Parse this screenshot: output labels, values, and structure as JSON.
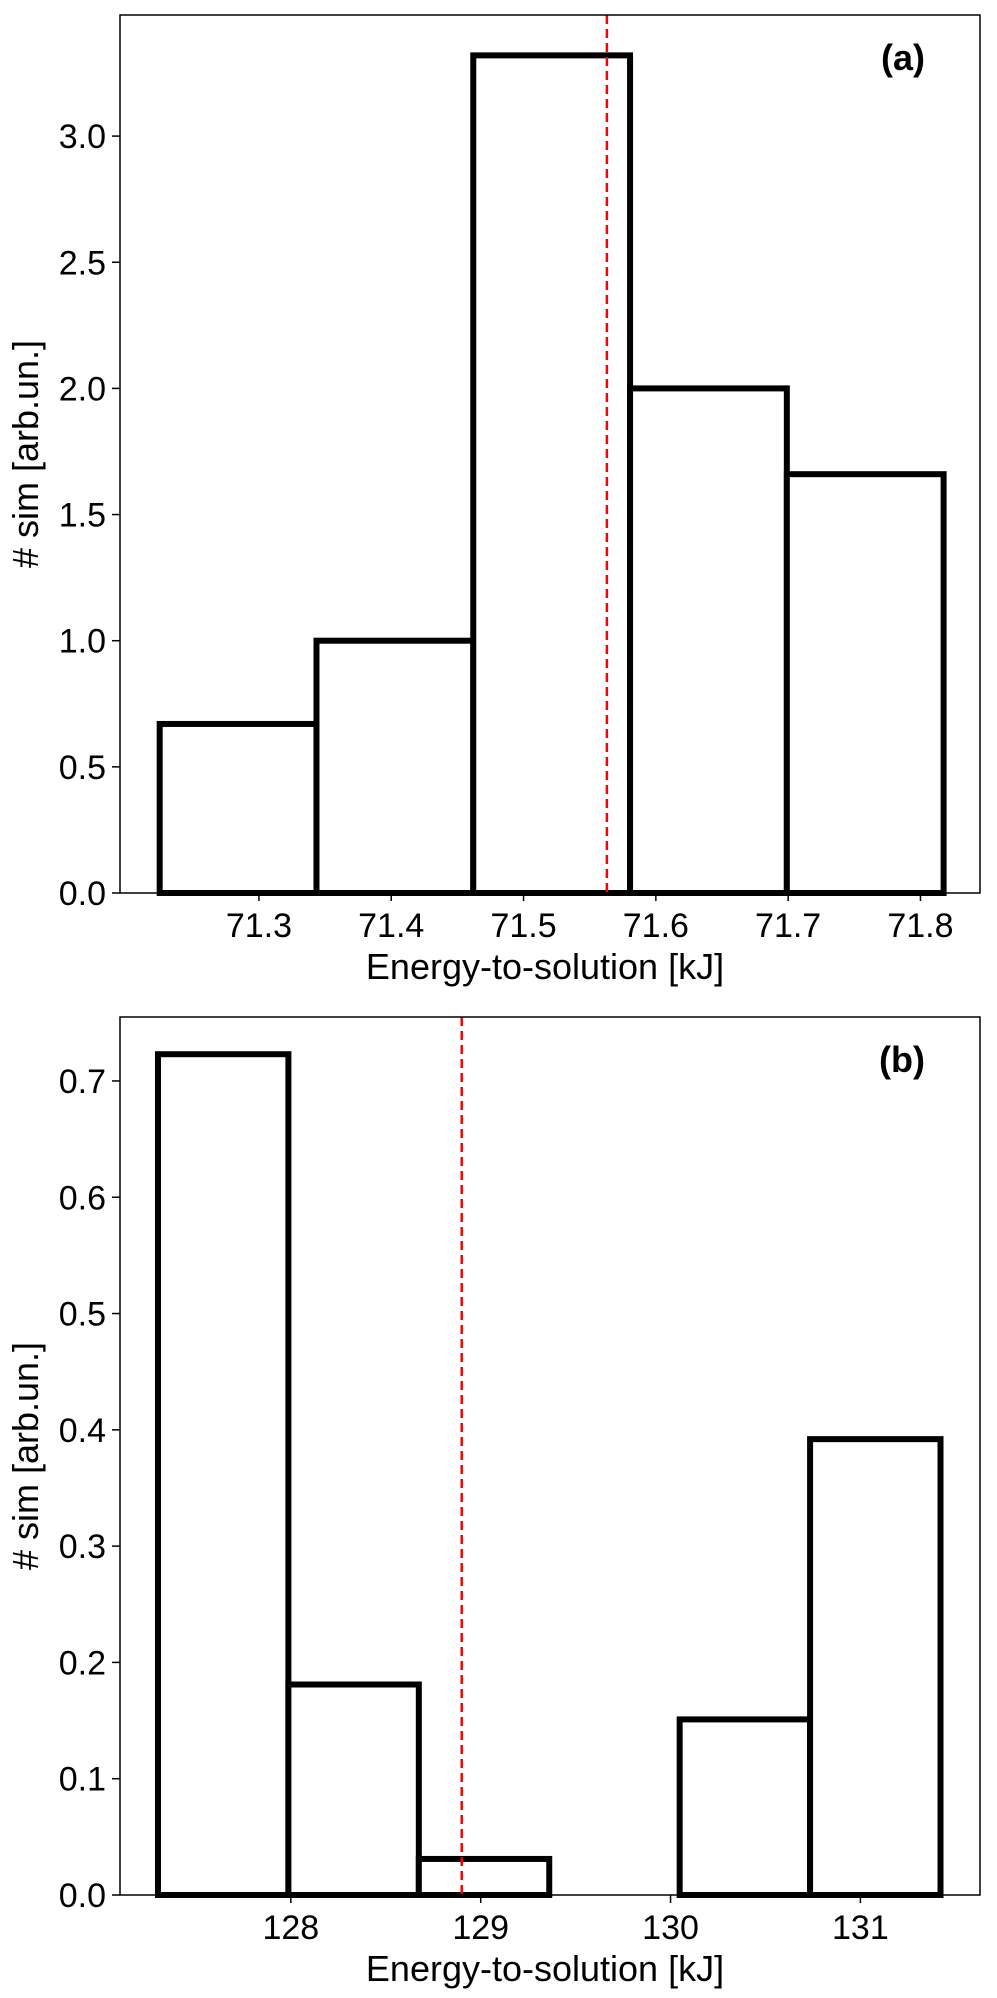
{
  "chart_data": [
    {
      "type": "bar",
      "panel": "(a)",
      "xlabel": "Energy-to-solution [kJ]",
      "ylabel": "# sim [arb.un.]",
      "bin_edges": [
        71.225,
        71.3435,
        71.462,
        71.5805,
        71.699,
        71.8175
      ],
      "values": [
        0.67,
        1.0,
        3.32,
        2.0,
        1.66
      ],
      "xlim": [
        71.195,
        71.845
      ],
      "ylim": [
        0,
        3.48
      ],
      "xticks": [
        71.3,
        71.4,
        71.5,
        71.6,
        71.7,
        71.8
      ],
      "xtick_labels": [
        "71.3",
        "71.4",
        "71.5",
        "71.6",
        "71.7",
        "71.8"
      ],
      "yticks": [
        0,
        0.5,
        1.0,
        1.5,
        2.0,
        2.5,
        3.0
      ],
      "ytick_labels": [
        "0.0",
        "0.5",
        "1.0",
        "1.5",
        "2.0",
        "2.5",
        "3.0"
      ],
      "reference_line": {
        "x": 71.563,
        "color": "#ff0000",
        "style": "dashed"
      },
      "bar_edge_color": "#000000",
      "grid": false
    },
    {
      "type": "bar",
      "panel": "(b)",
      "xlabel": "Energy-to-solution [kJ]",
      "ylabel": "# sim [arb.un.]",
      "bin_edges": [
        127.3,
        127.987,
        128.674,
        129.361,
        130.048,
        130.735,
        131.422
      ],
      "values": [
        0.723,
        0.181,
        0.031,
        0.0,
        0.151,
        0.392
      ],
      "xlim": [
        127.1,
        131.63
      ],
      "ylim": [
        0,
        0.755
      ],
      "xticks": [
        128,
        129,
        130,
        131
      ],
      "xtick_labels": [
        "128",
        "129",
        "130",
        "131"
      ],
      "yticks": [
        0,
        0.1,
        0.2,
        0.3,
        0.4,
        0.5,
        0.6,
        0.7
      ],
      "ytick_labels": [
        "0.0",
        "0.1",
        "0.2",
        "0.3",
        "0.4",
        "0.5",
        "0.6",
        "0.7"
      ],
      "reference_line": {
        "x": 128.9,
        "color": "#ff0000",
        "style": "dashed"
      },
      "bar_edge_color": "#000000",
      "grid": false
    }
  ]
}
